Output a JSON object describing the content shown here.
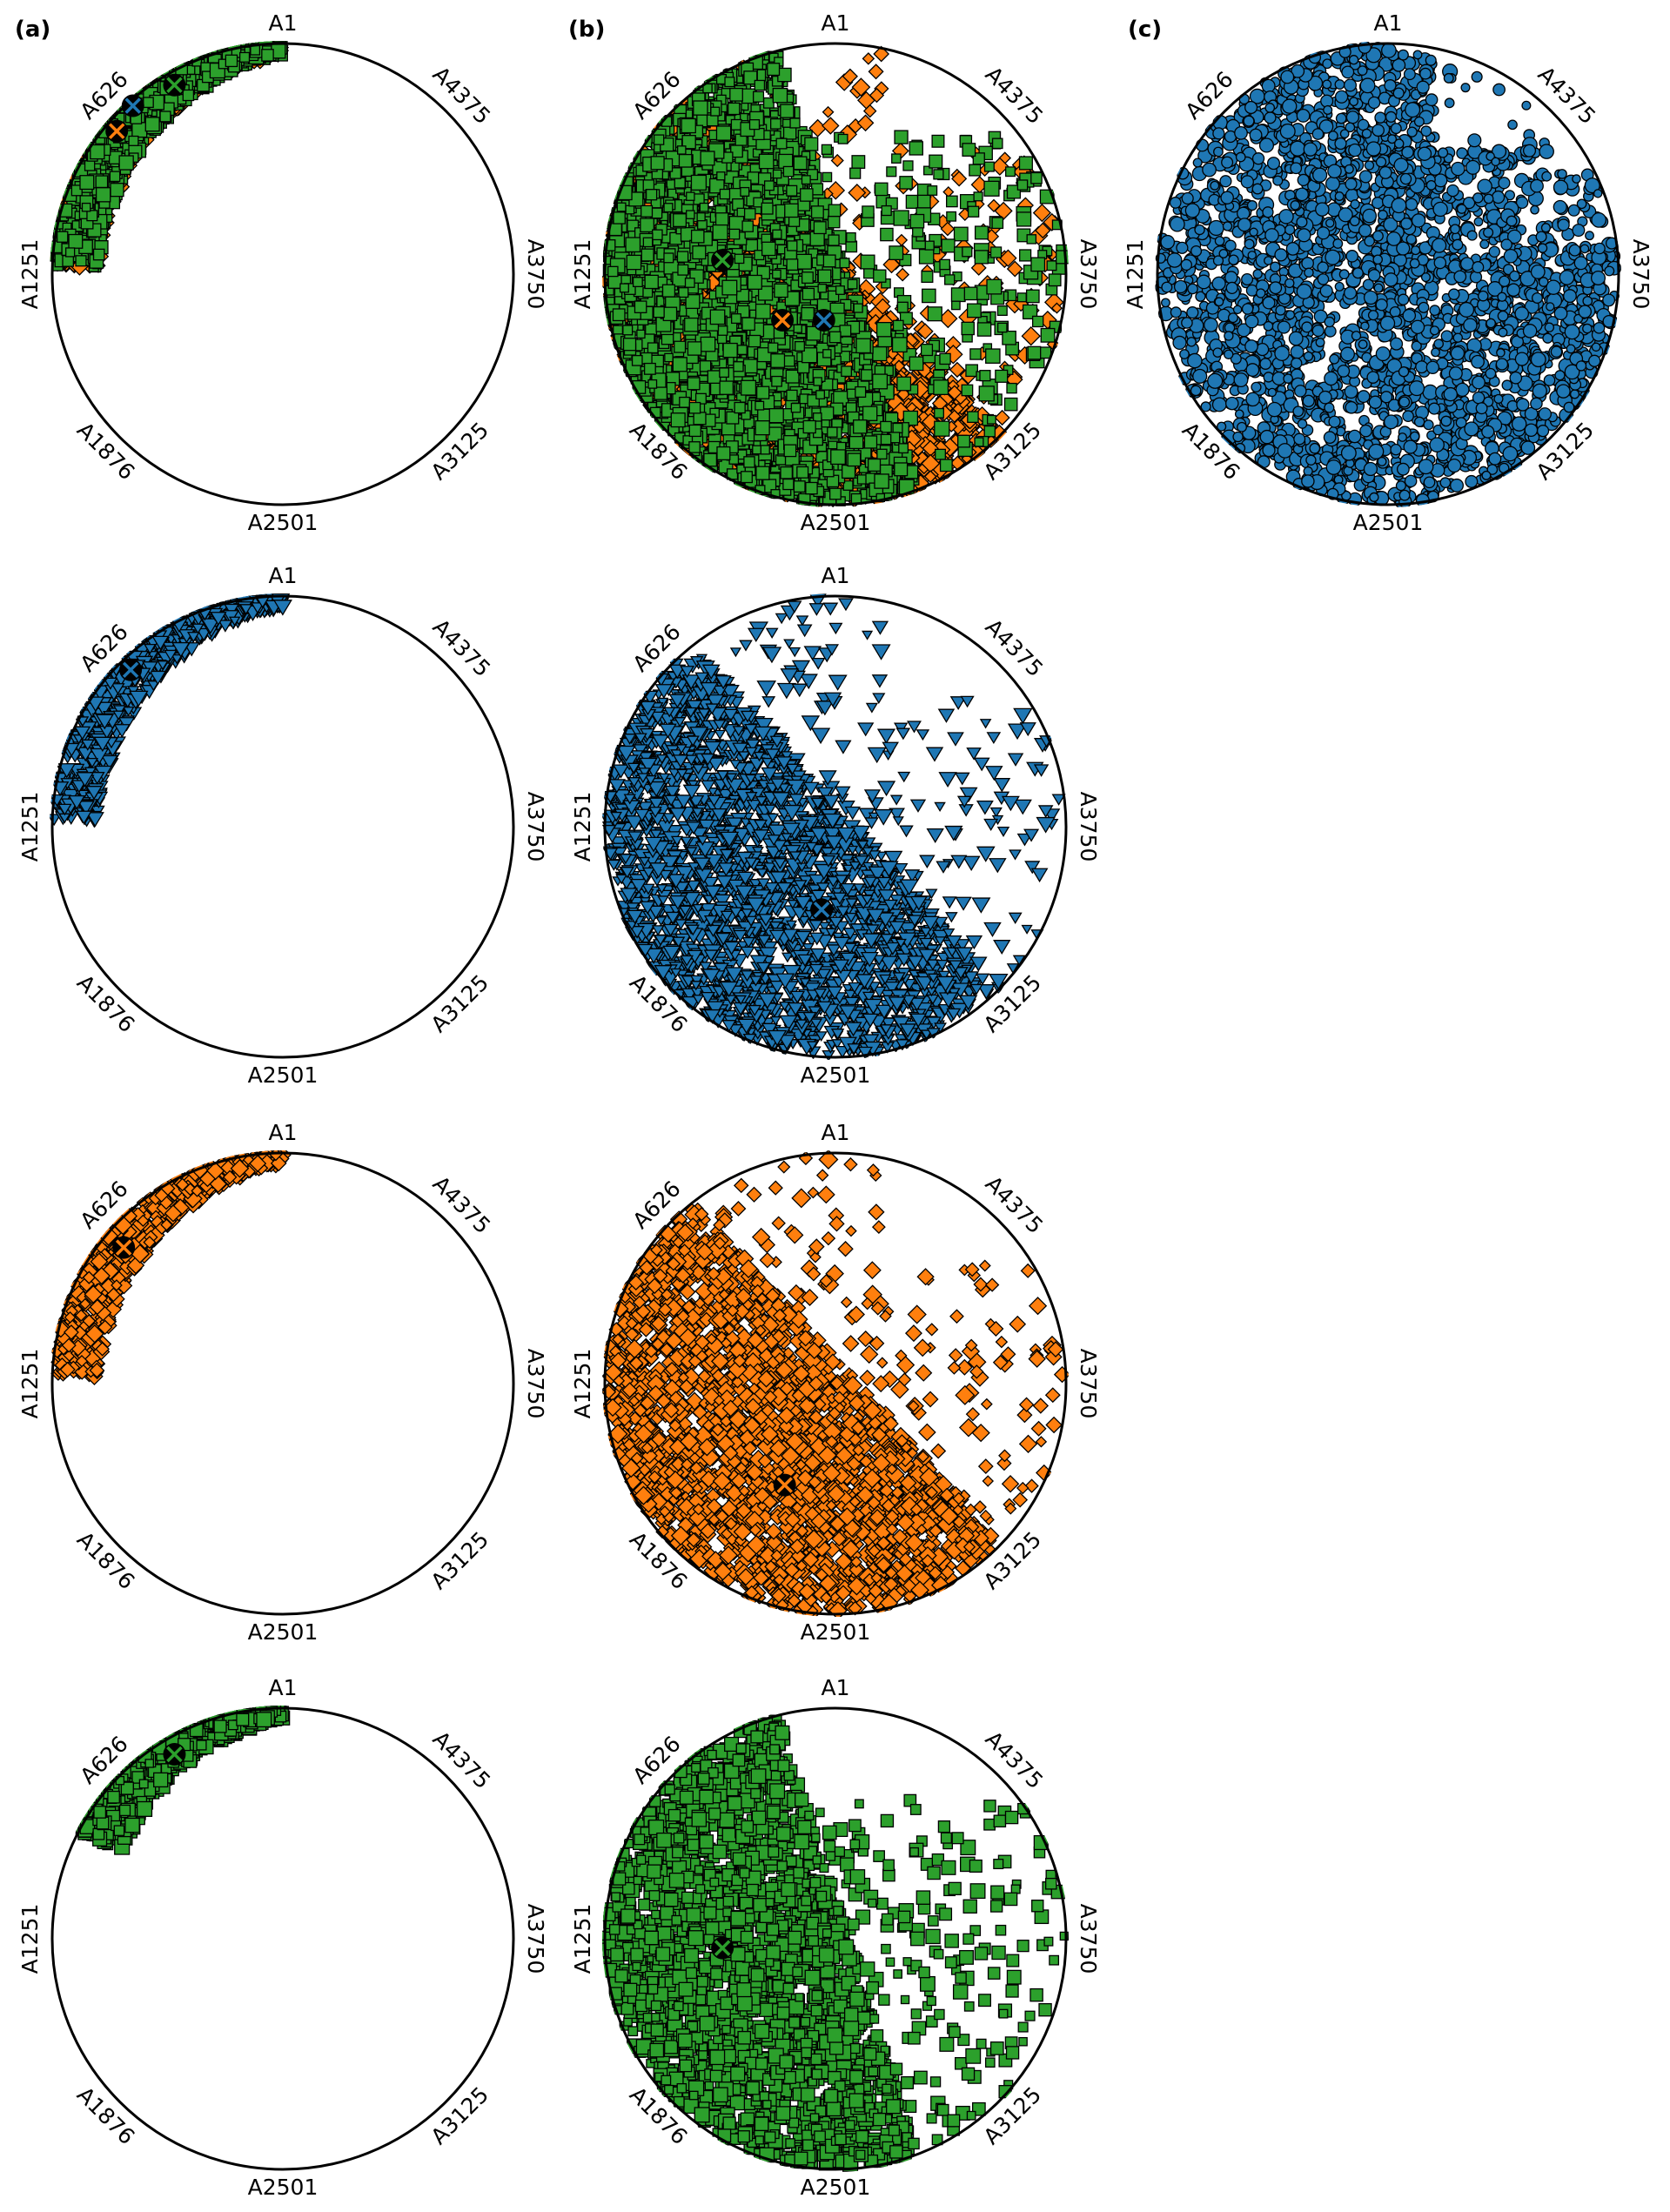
{
  "panel_letters": [
    "(a)",
    "(b)",
    "(c)"
  ],
  "anchor_labels": [
    "A1",
    "A626",
    "A1251",
    "A1876",
    "A2501",
    "A3125",
    "A3750",
    "A4375"
  ],
  "colors": {
    "blue": "#1f77b4",
    "orange": "#ff7f0e",
    "green": "#2ca02c",
    "marker_edge": "#000000",
    "ring": "#000000"
  },
  "chart_data": [
    {
      "type": "scatter",
      "panel": "(a)",
      "row": 1,
      "anchors": [
        "A1",
        "A626",
        "A1251",
        "A1876",
        "A2501",
        "A3125",
        "A3750",
        "A4375"
      ],
      "series": [
        {
          "color": "orange",
          "marker": "diamond",
          "spread": "narrow-crescent-A1-to-A1251"
        },
        {
          "color": "green",
          "marker": "square",
          "spread": "narrow-crescent-A1-to-A1251"
        }
      ],
      "centroids": [
        {
          "color": "blue",
          "near": "A626",
          "position": [
            -0.65,
            0.73
          ]
        },
        {
          "color": "orange",
          "near": "A626",
          "position": [
            -0.72,
            0.62
          ]
        },
        {
          "color": "green",
          "near": "A626",
          "position": [
            -0.47,
            0.82
          ]
        }
      ]
    },
    {
      "type": "scatter",
      "panel": "(a)",
      "row": 2,
      "anchors": [
        "A1",
        "A626",
        "A1251",
        "A1876",
        "A2501",
        "A3125",
        "A3750",
        "A4375"
      ],
      "series": [
        {
          "color": "blue",
          "marker": "triangle-down",
          "spread": "narrow-crescent-A1-to-A1251"
        }
      ],
      "centroids": [
        {
          "color": "blue",
          "near": "A626",
          "position": [
            -0.66,
            0.68
          ]
        }
      ]
    },
    {
      "type": "scatter",
      "panel": "(a)",
      "row": 3,
      "anchors": [
        "A1",
        "A626",
        "A1251",
        "A1876",
        "A2501",
        "A3125",
        "A3750",
        "A4375"
      ],
      "series": [
        {
          "color": "orange",
          "marker": "diamond",
          "spread": "narrow-crescent-A1-to-A1251"
        }
      ],
      "centroids": [
        {
          "color": "orange",
          "near": "A626",
          "position": [
            -0.69,
            0.59
          ]
        }
      ]
    },
    {
      "type": "scatter",
      "panel": "(a)",
      "row": 4,
      "anchors": [
        "A1",
        "A626",
        "A1251",
        "A1876",
        "A2501",
        "A3125",
        "A3750",
        "A4375"
      ],
      "series": [
        {
          "color": "green",
          "marker": "square",
          "spread": "narrow-crescent-A1-to-A626"
        }
      ],
      "centroids": [
        {
          "color": "green",
          "near": "A626",
          "position": [
            -0.47,
            0.8
          ]
        }
      ]
    },
    {
      "type": "scatter",
      "panel": "(b)",
      "row": 1,
      "anchors": [
        "A1",
        "A626",
        "A1251",
        "A1876",
        "A2501",
        "A3125",
        "A3750",
        "A4375"
      ],
      "series": [
        {
          "color": "orange",
          "marker": "diamond",
          "spread": "wide-A1-to-A3750"
        },
        {
          "color": "green",
          "marker": "square",
          "spread": "left-half-dense"
        }
      ],
      "centroids": [
        {
          "color": "green",
          "near": "A1251",
          "position": [
            -0.49,
            0.06
          ]
        },
        {
          "color": "orange",
          "near": "center",
          "position": [
            -0.23,
            -0.2
          ]
        },
        {
          "color": "blue",
          "near": "center",
          "position": [
            -0.05,
            -0.2
          ]
        }
      ]
    },
    {
      "type": "scatter",
      "panel": "(b)",
      "row": 2,
      "anchors": [
        "A1",
        "A626",
        "A1251",
        "A1876",
        "A2501",
        "A3125",
        "A3750",
        "A4375"
      ],
      "series": [
        {
          "color": "blue",
          "marker": "triangle-down",
          "spread": "wide-A1-to-A3750"
        }
      ],
      "centroids": [
        {
          "color": "blue",
          "near": "center",
          "position": [
            -0.06,
            -0.36
          ]
        }
      ]
    },
    {
      "type": "scatter",
      "panel": "(b)",
      "row": 3,
      "anchors": [
        "A1",
        "A626",
        "A1251",
        "A1876",
        "A2501",
        "A3125",
        "A3750",
        "A4375"
      ],
      "series": [
        {
          "color": "orange",
          "marker": "diamond",
          "spread": "wide-A1-to-A3750"
        }
      ],
      "centroids": [
        {
          "color": "orange",
          "near": "center",
          "position": [
            -0.22,
            -0.44
          ]
        }
      ]
    },
    {
      "type": "scatter",
      "panel": "(b)",
      "row": 4,
      "anchors": [
        "A1",
        "A626",
        "A1251",
        "A1876",
        "A2501",
        "A3125",
        "A3750",
        "A4375"
      ],
      "series": [
        {
          "color": "green",
          "marker": "square",
          "spread": "left-half-dense"
        }
      ],
      "centroids": [
        {
          "color": "green",
          "near": "A1251",
          "position": [
            -0.49,
            -0.04
          ]
        }
      ]
    },
    {
      "type": "scatter",
      "panel": "(c)",
      "row": 1,
      "anchors": [
        "A1",
        "A626",
        "A1251",
        "A1876",
        "A2501",
        "A3125",
        "A3750",
        "A4375"
      ],
      "series": [
        {
          "color": "blue",
          "marker": "circle",
          "spread": "nearly-full-disk"
        }
      ],
      "centroids": []
    }
  ]
}
